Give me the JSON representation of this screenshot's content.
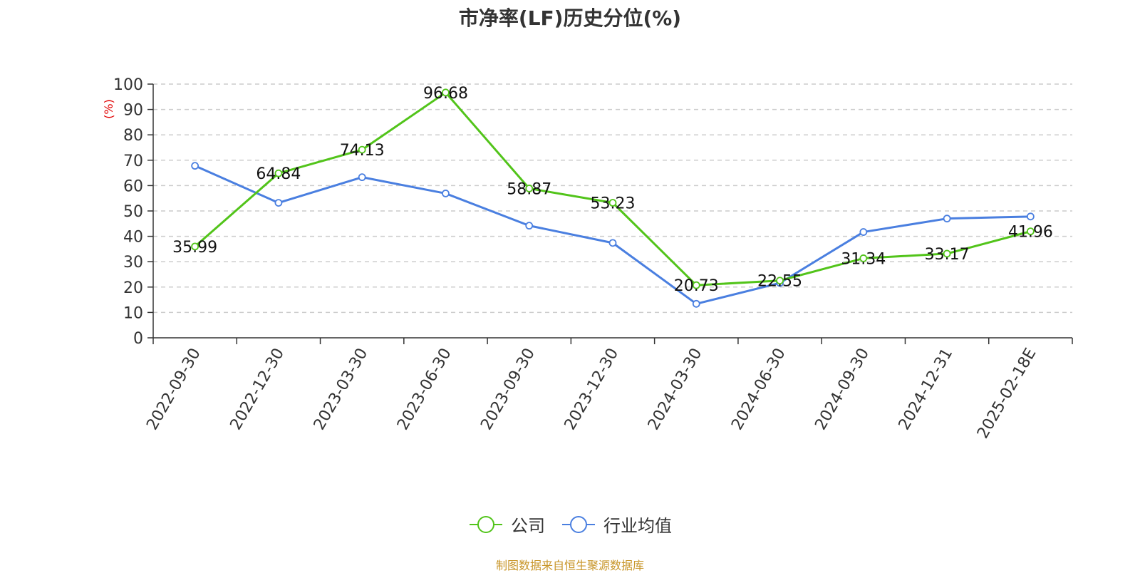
{
  "chart_data": {
    "type": "line",
    "title": "市净率(LF)历史分位(%)",
    "ylabel": "(%)",
    "ylim": [
      0,
      100
    ],
    "yticks": [
      0,
      10,
      20,
      30,
      40,
      50,
      60,
      70,
      80,
      90,
      100
    ],
    "grid": true,
    "legend_position": "bottom-center",
    "categories": [
      "2022-09-30",
      "2022-12-30",
      "2023-03-30",
      "2023-06-30",
      "2023-09-30",
      "2023-12-30",
      "2024-03-30",
      "2024-06-30",
      "2024-09-30",
      "2024-12-31",
      "2025-02-18E"
    ],
    "series": [
      {
        "name": "公司",
        "color": "#52c41a",
        "values": [
          35.99,
          64.84,
          74.13,
          96.68,
          58.87,
          53.23,
          20.73,
          22.55,
          31.34,
          33.17,
          41.96
        ],
        "data_labels": [
          "35.99",
          "64.84",
          "74.13",
          "96.68",
          "58.87",
          "53.23",
          "20.73",
          "22.55",
          "31.34",
          "33.17",
          "41.96"
        ]
      },
      {
        "name": "行业均值",
        "color": "#4a7fe0",
        "values": [
          67.8,
          53.2,
          63.3,
          56.9,
          44.2,
          37.4,
          13.4,
          21.6,
          41.7,
          47.0,
          47.8
        ]
      }
    ]
  },
  "footer": {
    "source": "制图数据来自恒生聚源数据库",
    "source_color": "#c8962a"
  }
}
